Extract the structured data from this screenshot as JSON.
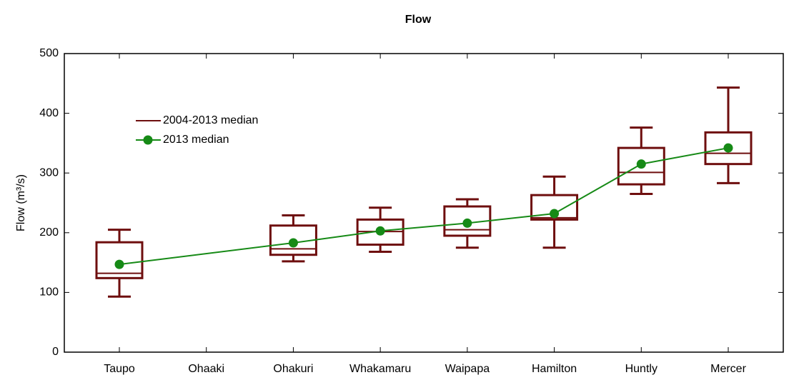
{
  "chart_data": {
    "type": "box",
    "title": "Flow",
    "y_label": "Flow (m³/s)",
    "categories": [
      "Taupo",
      "Ohaaki",
      "Ohakuri",
      "Whakamaru",
      "Waipapa",
      "Hamilton",
      "Huntly",
      "Mercer"
    ],
    "boxes": {
      "name": "2004-2013 median",
      "color": "#6e0e0e",
      "low": [
        93,
        null,
        152,
        168,
        175,
        175,
        265,
        283
      ],
      "q1": [
        124,
        null,
        163,
        180,
        195,
        222,
        281,
        315
      ],
      "median": [
        132,
        null,
        173,
        202,
        205,
        225,
        301,
        333
      ],
      "q3": [
        184,
        null,
        212,
        222,
        244,
        263,
        342,
        368
      ],
      "high": [
        205,
        null,
        229,
        242,
        256,
        294,
        376,
        443
      ]
    },
    "series": [
      {
        "name": "2013 median",
        "color": "#168a16",
        "values": [
          147,
          null,
          183,
          203,
          216,
          232,
          315,
          342
        ]
      }
    ],
    "ylim": [
      0,
      500
    ],
    "yticks": [
      0,
      100,
      200,
      300,
      400,
      500
    ]
  }
}
